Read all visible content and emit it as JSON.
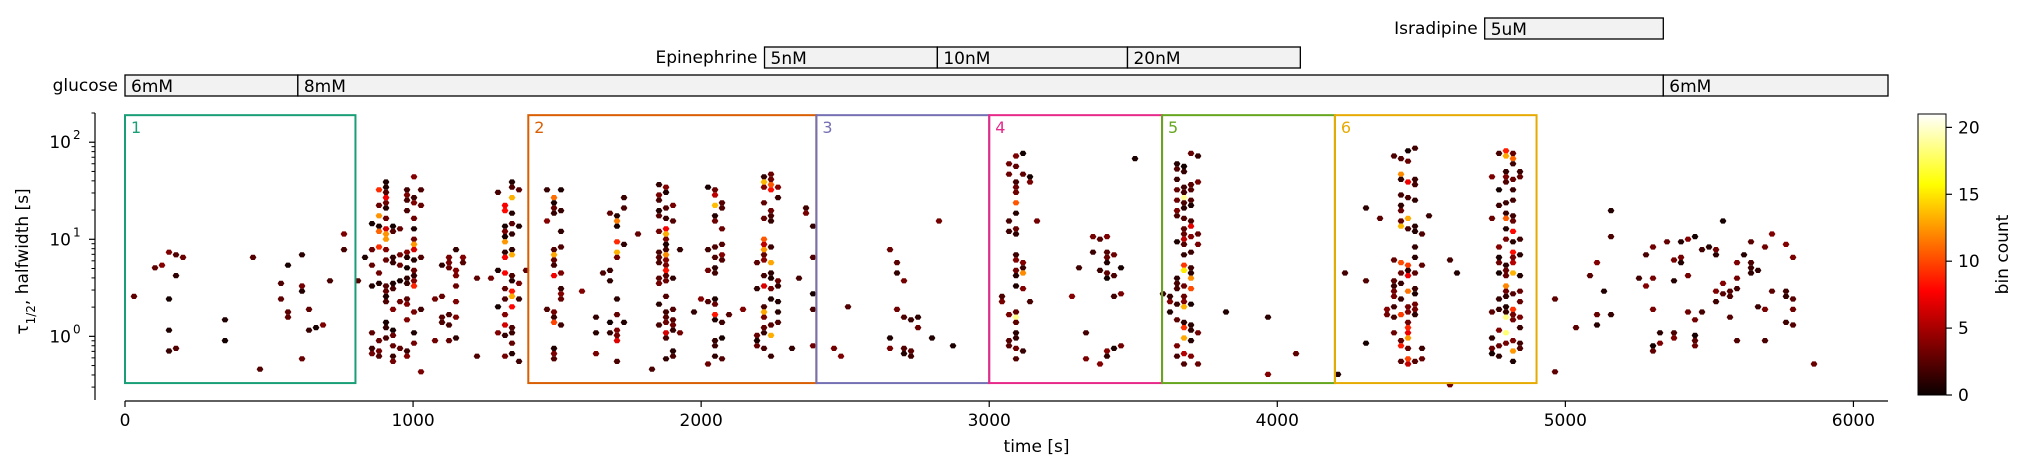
{
  "chart_data": {
    "type": "heatmap",
    "subtype": "hexbin",
    "xlabel": "time [s]",
    "ylabel": "τ1/2, halfwidth [s]",
    "ylabel_parts": {
      "main": "τ",
      "sub": "1/2",
      "rest": ", halfwidth [s]"
    },
    "xlim": [
      0,
      6120
    ],
    "ylim": [
      0.28,
      200
    ],
    "yscale": "log",
    "xticks": [
      0,
      1000,
      2000,
      3000,
      4000,
      5000,
      6000
    ],
    "xtick_labels": [
      "0",
      "1000",
      "2000",
      "3000",
      "4000",
      "5000",
      "6000"
    ],
    "yticks": [
      1,
      10,
      100
    ],
    "ytick_labels": [
      "10",
      "10",
      "10"
    ],
    "ytick_exps": [
      "0",
      "1",
      "2"
    ],
    "colorbar": {
      "label": "bin count",
      "range": [
        0,
        21
      ],
      "ticks": [
        0,
        5,
        10,
        15,
        20
      ],
      "tick_labels": [
        "0",
        "5",
        "10",
        "15",
        "20"
      ],
      "colormap": "hot"
    },
    "stimulus_tracks": [
      {
        "name": "Isradipine",
        "segments": [
          {
            "label": "5uM",
            "start": 4720,
            "end": 5340
          }
        ]
      },
      {
        "name": "Epinephrine",
        "segments": [
          {
            "label": "5nM",
            "start": 2220,
            "end": 2820
          },
          {
            "label": "10nM",
            "start": 2820,
            "end": 3480
          },
          {
            "label": "20nM",
            "start": 3480,
            "end": 4080
          }
        ]
      },
      {
        "name": "glucose",
        "segments": [
          {
            "label": "6mM",
            "start": 0,
            "end": 600
          },
          {
            "label": "8mM",
            "start": 600,
            "end": 5340
          },
          {
            "label": "6mM",
            "start": 5340,
            "end": 6120
          }
        ]
      }
    ],
    "regions": [
      {
        "label": "1",
        "x_start": 0,
        "x_end": 800,
        "color": "#1a9e77"
      },
      {
        "label": "2",
        "x_start": 1400,
        "x_end": 2400,
        "color": "#d95f02"
      },
      {
        "label": "3",
        "x_start": 2400,
        "x_end": 3000,
        "color": "#7570b3"
      },
      {
        "label": "4",
        "x_start": 3000,
        "x_end": 3600,
        "color": "#e7298a"
      },
      {
        "label": "5",
        "x_start": 3600,
        "x_end": 4200,
        "color": "#66a61e"
      },
      {
        "label": "6",
        "x_start": 4200,
        "x_end": 4900,
        "color": "#e6ab02"
      }
    ],
    "region_y_range": [
      0.33,
      190
    ],
    "activity_bands": [
      {
        "x": 140,
        "width": 60,
        "density": 0.35,
        "y_min": 0.7,
        "y_max": 8
      },
      {
        "x": 620,
        "width": 60,
        "density": 0.25,
        "y_min": 0.8,
        "y_max": 7
      },
      {
        "x": 900,
        "width": 80,
        "density": 0.9,
        "y_min": 0.55,
        "y_max": 40
      },
      {
        "x": 1000,
        "width": 40,
        "density": 0.8,
        "y_min": 0.6,
        "y_max": 45
      },
      {
        "x": 1130,
        "width": 80,
        "density": 0.6,
        "y_min": 0.6,
        "y_max": 10
      },
      {
        "x": 1330,
        "width": 50,
        "density": 0.85,
        "y_min": 0.5,
        "y_max": 40
      },
      {
        "x": 1500,
        "width": 40,
        "density": 0.85,
        "y_min": 0.5,
        "y_max": 35
      },
      {
        "x": 1700,
        "width": 40,
        "density": 0.85,
        "y_min": 0.5,
        "y_max": 30
      },
      {
        "x": 1880,
        "width": 50,
        "density": 0.9,
        "y_min": 0.5,
        "y_max": 40
      },
      {
        "x": 2050,
        "width": 40,
        "density": 0.9,
        "y_min": 0.5,
        "y_max": 40
      },
      {
        "x": 2230,
        "width": 50,
        "density": 0.9,
        "y_min": 0.5,
        "y_max": 50
      },
      {
        "x": 2380,
        "width": 30,
        "density": 0.6,
        "y_min": 0.6,
        "y_max": 30
      },
      {
        "x": 2700,
        "width": 80,
        "density": 0.4,
        "y_min": 0.6,
        "y_max": 8
      },
      {
        "x": 3100,
        "width": 50,
        "density": 1.0,
        "y_min": 0.5,
        "y_max": 80
      },
      {
        "x": 3400,
        "width": 80,
        "density": 0.5,
        "y_min": 0.5,
        "y_max": 15
      },
      {
        "x": 3680,
        "width": 60,
        "density": 1.0,
        "y_min": 0.5,
        "y_max": 80
      },
      {
        "x": 4450,
        "width": 60,
        "density": 0.95,
        "y_min": 0.5,
        "y_max": 100
      },
      {
        "x": 4800,
        "width": 60,
        "density": 0.95,
        "y_min": 0.5,
        "y_max": 90
      },
      {
        "x": 5500,
        "width": 400,
        "density": 0.25,
        "y_min": 0.7,
        "y_max": 12
      }
    ]
  }
}
